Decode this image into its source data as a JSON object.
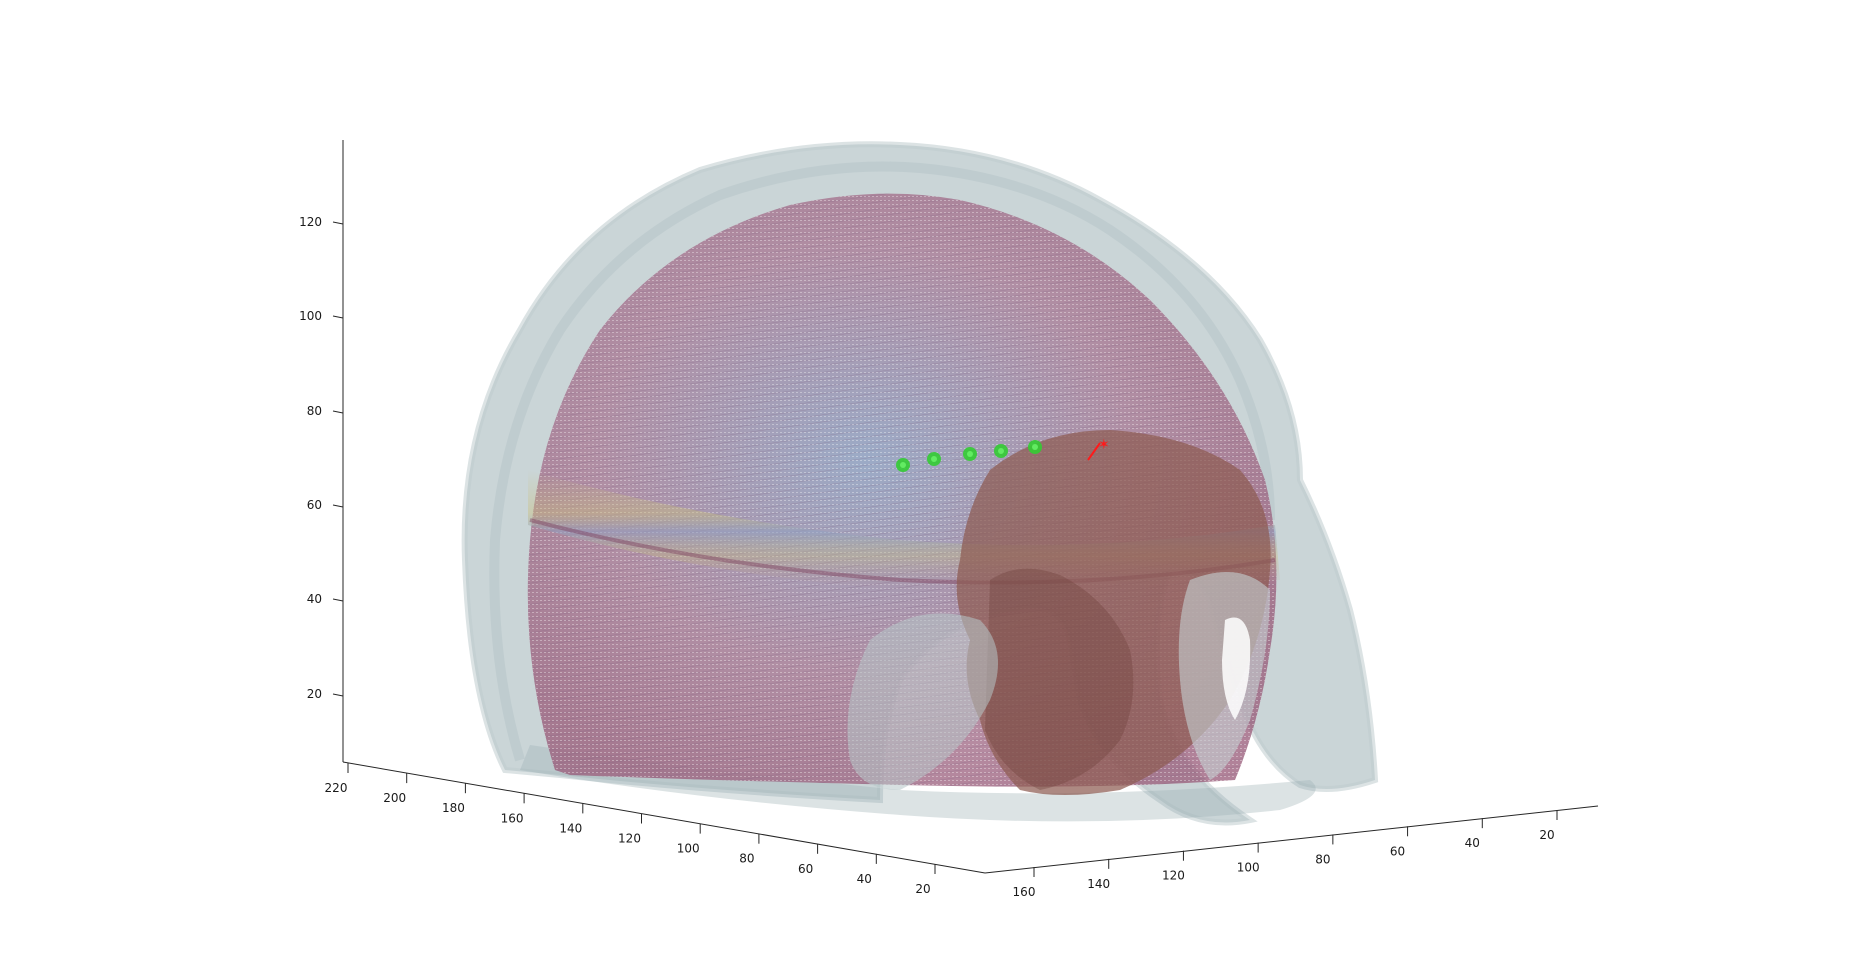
{
  "figure": {
    "background": "#ffffff",
    "axis_color": "#262626",
    "z_axis": {
      "ticks": [
        "20",
        "40",
        "60",
        "80",
        "100",
        "120"
      ]
    },
    "x_axis_left": {
      "ticks": [
        "220",
        "200",
        "180",
        "160",
        "140",
        "120",
        "100",
        "80",
        "60",
        "40",
        "20"
      ]
    },
    "x_axis_right": {
      "ticks": [
        "160",
        "140",
        "120",
        "100",
        "80",
        "60",
        "40",
        "20"
      ]
    },
    "colors": {
      "scalp": "#9fb3b8",
      "skull_base": "#d6dedf",
      "brain_surface": "#a97a95",
      "brain_band_blue": "#8e9fc2",
      "brain_band_yellow": "#c9c07e",
      "lesion": "#8d5b52",
      "electrodes": "#33cc33",
      "target_marker": "#ff1a1a"
    },
    "electrode_count": 5,
    "target_marker_icon": "star-icon"
  }
}
